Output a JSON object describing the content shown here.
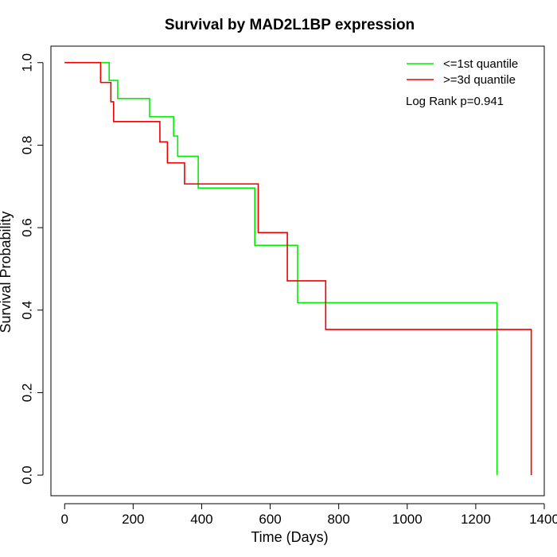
{
  "chart_data": {
    "type": "line",
    "title": "Survival by MAD2L1BP expression",
    "xlabel": "Time (Days)",
    "ylabel": "Survival Probability",
    "xlim": [
      -40,
      1400
    ],
    "ylim": [
      -0.05,
      1.04
    ],
    "xticks": [
      0,
      200,
      400,
      600,
      800,
      1000,
      1200,
      1400
    ],
    "yticks": [
      0.0,
      0.2,
      0.4,
      0.6,
      0.8,
      1.0
    ],
    "xtick_labels": [
      "0",
      "200",
      "400",
      "600",
      "800",
      "1000",
      "1200",
      "1400"
    ],
    "ytick_labels": [
      "0.0",
      "0.2",
      "0.4",
      "0.6",
      "0.8",
      "1.0"
    ],
    "grid": false,
    "legend_position": "top-right",
    "annotation": "Log Rank p=0.941",
    "series": [
      {
        "name": "<=1st quantile",
        "color": "#00ee00",
        "step": true,
        "x": [
          0,
          130,
          155,
          248,
          318,
          330,
          390,
          555,
          680,
          1262
        ],
        "y": [
          1.0,
          0.957,
          0.913,
          0.869,
          0.822,
          0.773,
          0.696,
          0.557,
          0.418,
          0.0
        ]
      },
      {
        "name": ">=3d quantile",
        "color": "#ee0000",
        "step": true,
        "x": [
          0,
          105,
          135,
          143,
          278,
          300,
          350,
          565,
          650,
          762,
          1362
        ],
        "y": [
          1.0,
          0.952,
          0.905,
          0.857,
          0.808,
          0.757,
          0.706,
          0.588,
          0.471,
          0.353,
          0.0
        ]
      }
    ]
  }
}
